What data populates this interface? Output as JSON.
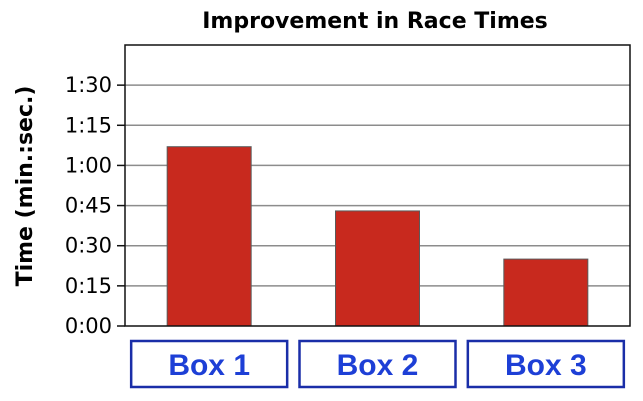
{
  "chart_data": {
    "type": "bar",
    "title": "Improvement in Race Times",
    "ylabel": "Time (min.:sec.)",
    "xlabel": "",
    "categories": [
      "Box 1",
      "Box 2",
      "Box 3"
    ],
    "values": [
      67,
      43,
      25
    ],
    "value_unit": "seconds",
    "ylim": [
      0,
      105
    ],
    "yticks": [
      0,
      15,
      30,
      45,
      60,
      75,
      90
    ],
    "ytick_labels": [
      "0:00",
      "0:15",
      "0:30",
      "0:45",
      "1:00",
      "1:15",
      "1:30"
    ],
    "grid": true,
    "legend": "none",
    "colors": {
      "bar": "#c8291e",
      "category_text": "#1d3fd6",
      "category_border": "#1a2ea8"
    }
  }
}
